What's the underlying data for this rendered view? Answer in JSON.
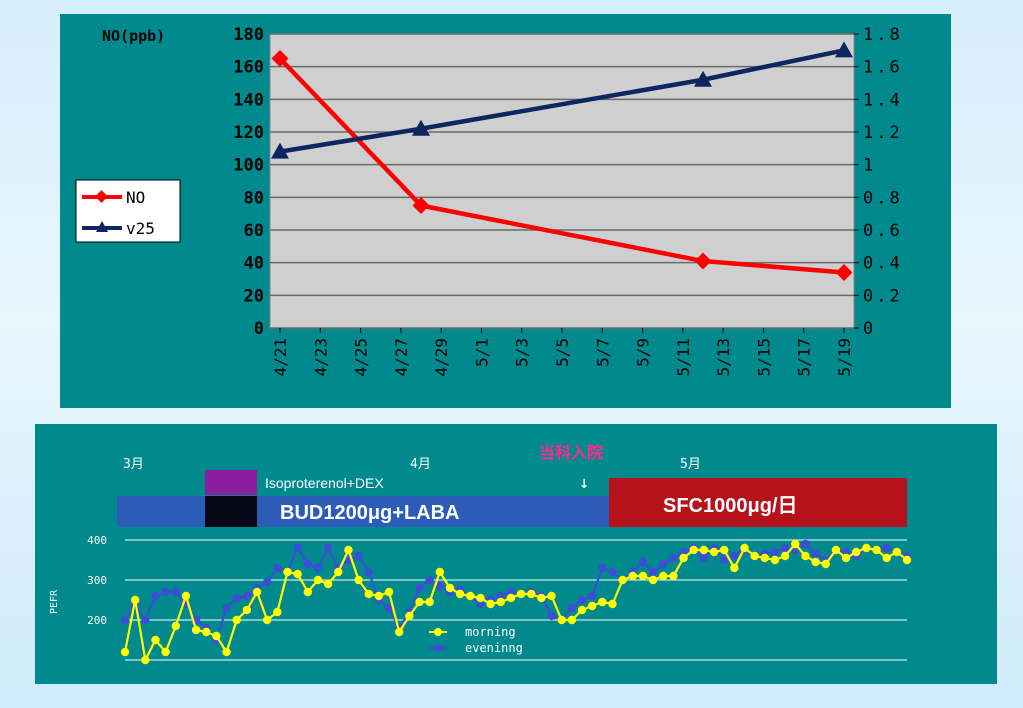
{
  "chart_data": [
    {
      "type": "line",
      "y_title": "NO(ppb)",
      "x_ticks": [
        "4/21",
        "4/23",
        "4/25",
        "4/27",
        "4/29",
        "5/1",
        "5/3",
        "5/5",
        "5/7",
        "5/9",
        "5/11",
        "5/13",
        "5/15",
        "5/17",
        "5/19"
      ],
      "ylim_left": [
        0,
        180
      ],
      "yticks_left": [
        "0",
        "20",
        "40",
        "60",
        "80",
        "100",
        "120",
        "140",
        "160",
        "180"
      ],
      "ylim_right": [
        0,
        1.8
      ],
      "yticks_right": [
        "0",
        "0.2",
        "0.4",
        "0.6",
        "0.8",
        "1",
        "1.2",
        "1.4",
        "1.6",
        "1.8"
      ],
      "grid": true,
      "legend_position": "left",
      "series": [
        {
          "name": "NO",
          "axis": "left",
          "color": "#ff0000",
          "marker": "diamond",
          "x": [
            "4/21",
            "4/28",
            "5/12",
            "5/19"
          ],
          "values": [
            165,
            75,
            41,
            34
          ]
        },
        {
          "name": "v25",
          "axis": "right",
          "color": "#0d2660",
          "marker": "triangle",
          "x": [
            "4/21",
            "4/28",
            "5/12",
            "5/19"
          ],
          "values": [
            1.08,
            1.22,
            1.52,
            1.7
          ]
        }
      ]
    },
    {
      "type": "line",
      "ylabel": "PEFR",
      "yticks": [
        "200",
        "300",
        "400"
      ],
      "ylim": [
        100,
        400
      ],
      "month_labels": [
        "3月",
        "4月",
        "5月"
      ],
      "annotation": "当科入院",
      "arrow": "↓",
      "treatment_bars": [
        "Isoproterenol+DEX",
        "BUD1200μg+LABA",
        "SFC1000μg/日"
      ],
      "series": [
        {
          "name": "morning",
          "color": "#ffff00",
          "values": [
            120,
            250,
            100,
            150,
            120,
            185,
            260,
            175,
            170,
            160,
            120,
            200,
            225,
            270,
            200,
            220,
            320,
            315,
            270,
            300,
            290,
            320,
            375,
            300,
            265,
            260,
            270,
            170,
            210,
            245,
            245,
            320,
            280,
            265,
            260,
            255,
            240,
            245,
            255,
            265,
            265,
            255,
            260,
            200,
            200,
            225,
            235,
            245,
            240,
            300,
            310,
            310,
            300,
            310,
            310,
            355,
            375,
            375,
            370,
            375,
            330,
            380,
            360,
            355,
            350,
            360,
            390,
            360,
            345,
            340,
            375,
            355,
            370,
            380,
            375,
            355,
            370,
            350
          ]
        },
        {
          "name": "eveninng",
          "color": "#3b4fd4",
          "values": [
            200,
            235,
            200,
            260,
            270,
            270,
            240,
            200,
            180,
            150,
            230,
            255,
            260,
            280,
            295,
            330,
            320,
            380,
            340,
            330,
            380,
            330,
            350,
            360,
            320,
            250,
            230,
            180,
            220,
            280,
            300,
            285,
            270,
            275,
            260,
            240,
            250,
            260,
            270,
            265,
            270,
            260,
            210,
            200,
            230,
            250,
            260,
            330,
            320,
            300,
            320,
            345,
            320,
            340,
            355,
            370,
            380,
            355,
            380,
            350,
            360,
            375,
            360,
            365,
            370,
            380,
            375,
            390,
            365,
            350,
            375,
            370,
            360,
            380,
            375,
            380,
            370,
            360
          ]
        }
      ]
    }
  ]
}
